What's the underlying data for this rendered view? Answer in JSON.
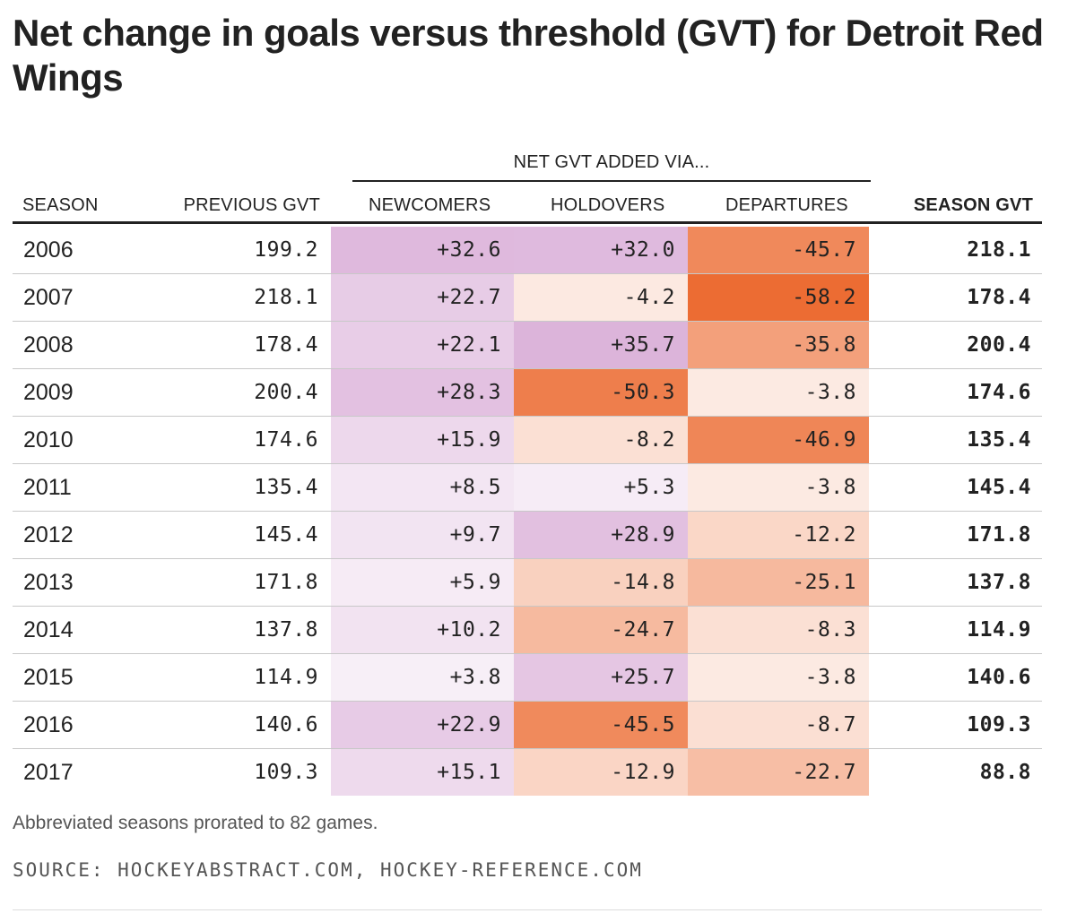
{
  "title": "Net change in goals versus threshold (GVT) for Detroit Red Wings",
  "group_header": "NET GVT ADDED VIA...",
  "headers": {
    "season": "SEASON",
    "previous": "PREVIOUS GVT",
    "newcomers": "NEWCOMERS",
    "holdovers": "HOLDOVERS",
    "departures": "DEPARTURES",
    "season_gvt": "SEASON GVT"
  },
  "chart_data": {
    "type": "table",
    "title": "Net change in goals versus threshold (GVT) for Detroit Red Wings",
    "columns": [
      "SEASON",
      "PREVIOUS GVT",
      "NEWCOMERS",
      "HOLDOVERS",
      "DEPARTURES",
      "SEASON GVT"
    ],
    "rows": [
      {
        "season": "2006",
        "previous": "199.2",
        "newcomers": "+32.6",
        "holdovers": "+32.0",
        "departures": "-45.7",
        "season_gvt": "218.1"
      },
      {
        "season": "2007",
        "previous": "218.1",
        "newcomers": "+22.7",
        "holdovers": "-4.2",
        "departures": "-58.2",
        "season_gvt": "178.4"
      },
      {
        "season": "2008",
        "previous": "178.4",
        "newcomers": "+22.1",
        "holdovers": "+35.7",
        "departures": "-35.8",
        "season_gvt": "200.4"
      },
      {
        "season": "2009",
        "previous": "200.4",
        "newcomers": "+28.3",
        "holdovers": "-50.3",
        "departures": "-3.8",
        "season_gvt": "174.6"
      },
      {
        "season": "2010",
        "previous": "174.6",
        "newcomers": "+15.9",
        "holdovers": "-8.2",
        "departures": "-46.9",
        "season_gvt": "135.4"
      },
      {
        "season": "2011",
        "previous": "135.4",
        "newcomers": "+8.5",
        "holdovers": "+5.3",
        "departures": "-3.8",
        "season_gvt": "145.4"
      },
      {
        "season": "2012",
        "previous": "145.4",
        "newcomers": "+9.7",
        "holdovers": "+28.9",
        "departures": "-12.2",
        "season_gvt": "171.8"
      },
      {
        "season": "2013",
        "previous": "171.8",
        "newcomers": "+5.9",
        "holdovers": "-14.8",
        "departures": "-25.1",
        "season_gvt": "137.8"
      },
      {
        "season": "2014",
        "previous": "137.8",
        "newcomers": "+10.2",
        "holdovers": "-24.7",
        "departures": "-8.3",
        "season_gvt": "114.9"
      },
      {
        "season": "2015",
        "previous": "114.9",
        "newcomers": "+3.8",
        "holdovers": "+25.7",
        "departures": "-3.8",
        "season_gvt": "140.6"
      },
      {
        "season": "2016",
        "previous": "140.6",
        "newcomers": "+22.9",
        "holdovers": "-45.5",
        "departures": "-8.7",
        "season_gvt": "109.3"
      },
      {
        "season": "2017",
        "previous": "109.3",
        "newcomers": "+15.1",
        "holdovers": "-12.9",
        "departures": "-22.7",
        "season_gvt": "88.8"
      }
    ],
    "colors": {
      "positive": "#c98ac6",
      "negative": "#ec6c33"
    }
  },
  "note": "Abbreviated seasons prorated to 82 games.",
  "source": "SOURCE: HOCKEYABSTRACT.COM, HOCKEY-REFERENCE.COM"
}
